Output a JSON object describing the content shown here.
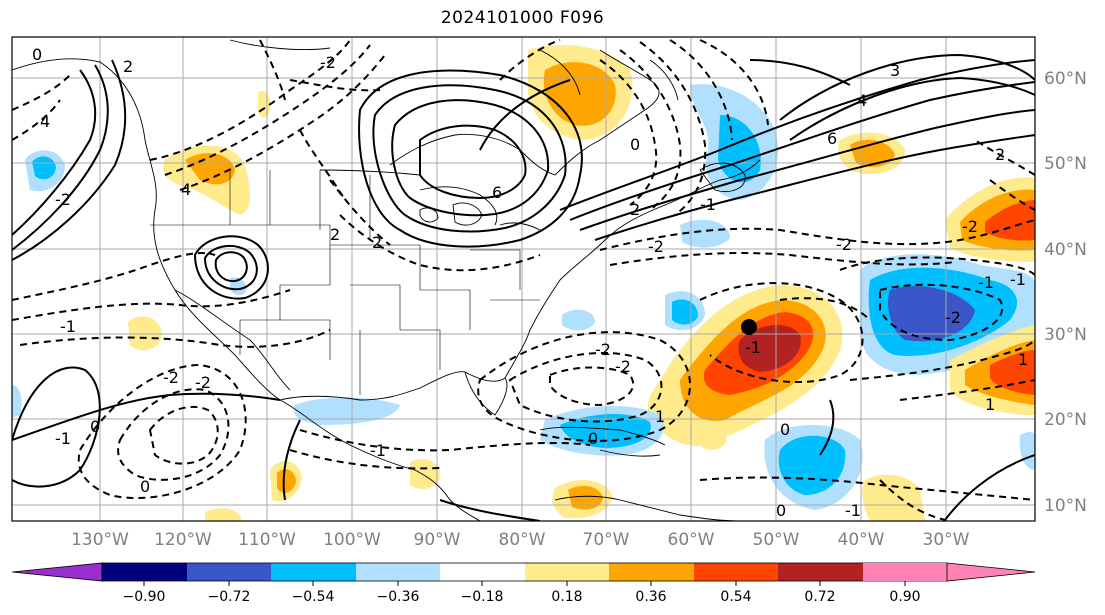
{
  "title": "2024101000 F096",
  "lon_labels": [
    "130°W",
    "120°W",
    "110°W",
    "100°W",
    "90°W",
    "80°W",
    "70°W",
    "60°W",
    "50°W",
    "40°W",
    "30°W"
  ],
  "lat_labels": [
    "60°N",
    "50°N",
    "40°N",
    "30°N",
    "20°N",
    "10°N"
  ],
  "colorbar": {
    "tick_labels": [
      "−0.90",
      "−0.72",
      "−0.54",
      "−0.36",
      "−0.18",
      "0.18",
      "0.36",
      "0.54",
      "0.72",
      "0.90"
    ],
    "colors": [
      "#9a2fd0",
      "#000080",
      "#3a56c8",
      "#00bfff",
      "#b0e0fe",
      "#ffffff",
      "#ffea8c",
      "#ffa500",
      "#ff4500",
      "#b22222",
      "#ff82b4"
    ]
  },
  "contour_labels": [
    "0",
    "2",
    "4",
    "6",
    "3",
    "4",
    "6",
    "2",
    "4",
    "-2",
    "-2",
    "-1",
    "-2",
    "-2",
    "2",
    "-2",
    "-1",
    "-2",
    "-1",
    "0",
    "-1",
    "-2",
    "0",
    "1",
    "0",
    "-1",
    "-2",
    "-1",
    "0",
    "1",
    "2",
    "2",
    "-2",
    "0",
    "-2",
    "-1",
    "-1",
    "0",
    "1"
  ],
  "marker": {
    "label": "storm-center",
    "lon": -55,
    "lat": 30.5
  }
}
